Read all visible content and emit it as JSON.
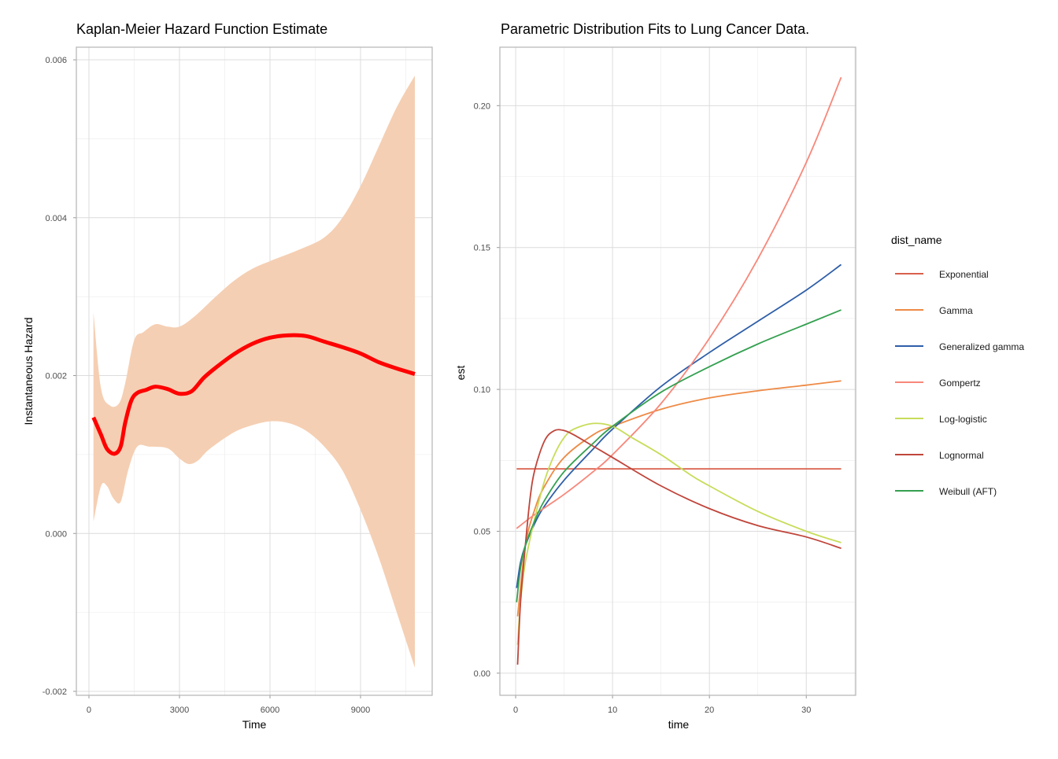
{
  "chart_data": [
    {
      "type": "line",
      "title": "Kaplan-Meier Hazard Function Estimate",
      "xlabel": "Time",
      "ylabel": "Instantaneous Hazard",
      "xlim": [
        -417,
        11374
      ],
      "ylim": [
        -0.00205,
        0.00616
      ],
      "xticks": [
        0,
        3000,
        6000,
        9000
      ],
      "xtick_labels": [
        "0",
        "3000",
        "6000",
        "9000"
      ],
      "yticks": [
        -0.002,
        0,
        0.002,
        0.004,
        0.006
      ],
      "ytick_labels": [
        "-0.002",
        "0.000",
        "0.002",
        "0.004",
        "0.006"
      ],
      "grid": true,
      "line_color": "#ff0000",
      "ribbon_color": "#f5cfb3",
      "series": [
        {
          "name": "hazard",
          "x": [
            150,
            400,
            600,
            850,
            1050,
            1200,
            1400,
            1600,
            1900,
            2200,
            2600,
            3000,
            3400,
            3800,
            4200,
            4800,
            5400,
            6000,
            6600,
            7200,
            7800,
            8400,
            9000,
            9600,
            10200,
            10800
          ],
          "y": [
            0.00147,
            0.00125,
            0.00107,
            0.00101,
            0.0011,
            0.0014,
            0.00168,
            0.00178,
            0.00182,
            0.00186,
            0.00183,
            0.00177,
            0.0018,
            0.00197,
            0.0021,
            0.00227,
            0.0024,
            0.00248,
            0.00251,
            0.0025,
            0.00243,
            0.00236,
            0.00228,
            0.00217,
            0.00209,
            0.00202
          ]
        }
      ],
      "ribbon": {
        "upper_x": [
          150,
          400,
          700,
          1000,
          1200,
          1500,
          1800,
          2200,
          2600,
          3000,
          3500,
          4200,
          4800,
          5400,
          6000,
          7000,
          7800,
          8400,
          9000,
          9600,
          10200,
          10800
        ],
        "upper_y": [
          0.0028,
          0.00184,
          0.00162,
          0.00165,
          0.0019,
          0.00245,
          0.00255,
          0.00265,
          0.00262,
          0.00262,
          0.00275,
          0.003,
          0.0032,
          0.00335,
          0.00345,
          0.0036,
          0.00375,
          0.004,
          0.0044,
          0.0049,
          0.0054,
          0.0058
        ],
        "lower_x": [
          150,
          400,
          600,
          800,
          1050,
          1300,
          1600,
          2000,
          2600,
          3000,
          3300,
          3600,
          4000,
          4800,
          5400,
          6000,
          6600,
          7200,
          7800,
          8400,
          9000,
          9600,
          10200,
          10800
        ],
        "lower_y": [
          0.00015,
          0.0006,
          0.0006,
          0.00045,
          0.0004,
          0.0008,
          0.0011,
          0.0011,
          0.00108,
          0.00095,
          0.00088,
          0.00092,
          0.00107,
          0.00128,
          0.00137,
          0.00142,
          0.0014,
          0.0013,
          0.0011,
          0.0008,
          0.0003,
          -0.0003,
          -0.001,
          -0.0017
        ]
      }
    },
    {
      "type": "line",
      "title": "Parametric Distribution Fits to Lung Cancer Data.",
      "xlabel": "time",
      "ylabel": "est",
      "xlim": [
        -1.63,
        35.1
      ],
      "ylim": [
        -0.0078,
        0.2206
      ],
      "xticks": [
        0,
        10,
        20,
        30
      ],
      "xtick_labels": [
        "0",
        "10",
        "20",
        "30"
      ],
      "yticks": [
        0,
        0.05,
        0.1,
        0.15,
        0.2
      ],
      "ytick_labels": [
        "0.00",
        "0.05",
        "0.10",
        "0.15",
        "0.20"
      ],
      "grid": true,
      "legend_title": "dist_name",
      "legend_position": "right",
      "series": [
        {
          "name": "Exponential",
          "color": "#d9604c",
          "x": [
            0.1,
            33.6
          ],
          "y": [
            0.072,
            0.072
          ]
        },
        {
          "name": "Gamma",
          "color": "#ee8a45",
          "x": [
            0.2,
            1,
            2,
            3,
            5,
            8,
            10,
            15,
            20,
            25,
            30,
            33.6
          ],
          "y": [
            0.02,
            0.045,
            0.058,
            0.066,
            0.076,
            0.084,
            0.087,
            0.093,
            0.097,
            0.0995,
            0.1015,
            0.103
          ]
        },
        {
          "name": "Generalized gamma",
          "color": "#2e5ea8",
          "x": [
            0.1,
            0.5,
            1,
            2,
            3,
            5,
            8,
            10,
            15,
            20,
            25,
            30,
            33.6
          ],
          "y": [
            0.03,
            0.039,
            0.045,
            0.053,
            0.059,
            0.068,
            0.079,
            0.086,
            0.101,
            0.113,
            0.124,
            0.135,
            0.144
          ]
        },
        {
          "name": "Gompertz",
          "color": "#f8877a",
          "x": [
            0.1,
            2,
            5,
            8,
            10,
            15,
            20,
            25,
            30,
            33.6
          ],
          "y": [
            0.051,
            0.056,
            0.063,
            0.071,
            0.077,
            0.095,
            0.118,
            0.146,
            0.18,
            0.21
          ]
        },
        {
          "name": "Log-logistic",
          "color": "#c8dc5a",
          "x": [
            0.2,
            0.5,
            1,
            2,
            3,
            4,
            5,
            6,
            8,
            10,
            12,
            15,
            18,
            20,
            25,
            30,
            33.6
          ],
          "y": [
            0.01,
            0.025,
            0.039,
            0.055,
            0.068,
            0.077,
            0.083,
            0.086,
            0.088,
            0.087,
            0.083,
            0.077,
            0.07,
            0.066,
            0.057,
            0.05,
            0.046
          ]
        },
        {
          "name": "Lognormal",
          "color": "#c0453b",
          "x": [
            0.2,
            0.5,
            1,
            1.5,
            2,
            3,
            4,
            5,
            6,
            8,
            10,
            15,
            20,
            25,
            30,
            33.6
          ],
          "y": [
            0.003,
            0.025,
            0.045,
            0.062,
            0.072,
            0.082,
            0.0855,
            0.0855,
            0.084,
            0.08,
            0.076,
            0.066,
            0.058,
            0.052,
            0.048,
            0.044
          ]
        },
        {
          "name": "Weibull (AFT)",
          "color": "#34a050",
          "x": [
            0.1,
            0.5,
            1,
            2,
            3,
            5,
            8,
            10,
            15,
            20,
            25,
            30,
            33.6
          ],
          "y": [
            0.025,
            0.037,
            0.045,
            0.054,
            0.061,
            0.071,
            0.081,
            0.087,
            0.099,
            0.108,
            0.116,
            0.123,
            0.128
          ]
        }
      ]
    }
  ]
}
